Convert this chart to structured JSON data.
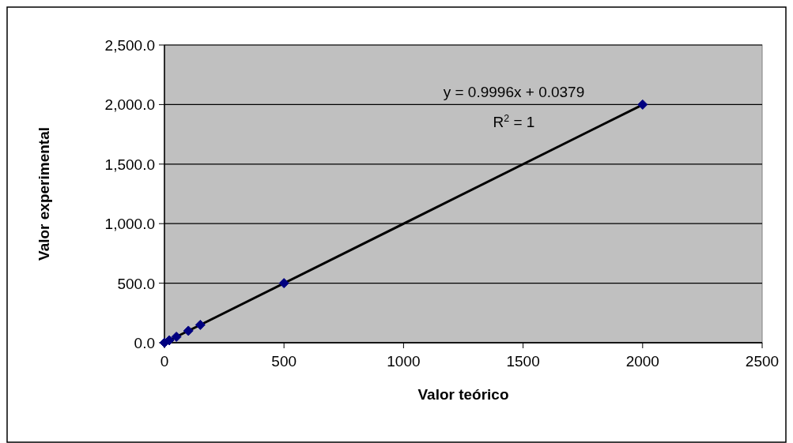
{
  "chart_data": {
    "type": "scatter",
    "xlabel": "Valor teórico",
    "ylabel": "Valor experimental",
    "xlim": [
      0,
      2500
    ],
    "xticks": [
      0,
      500,
      1000,
      1500,
      2000,
      2500
    ],
    "ylim": [
      0,
      2500
    ],
    "yticks": [
      {
        "value": 0,
        "label": "0.0"
      },
      {
        "value": 500,
        "label": "500.0"
      },
      {
        "value": 1000,
        "label": "1,000.0"
      },
      {
        "value": 1500,
        "label": "1,500.0"
      },
      {
        "value": 2000,
        "label": "2,000.0"
      },
      {
        "value": 2500,
        "label": "2,500.0"
      }
    ],
    "grid": "y",
    "series": [
      {
        "marker": "diamond",
        "color": "#000080",
        "x": [
          0,
          20,
          50,
          100,
          150,
          500,
          2000
        ],
        "values": [
          0,
          20,
          50,
          100,
          150,
          500,
          2000
        ]
      },
      {
        "type": "line",
        "color": "#000000",
        "x": [
          0,
          2000
        ],
        "values": [
          0,
          1999
        ]
      }
    ],
    "annotations": [
      "y = 0.9996x + 0.0379",
      "R$^{2}$ = 1"
    ]
  }
}
